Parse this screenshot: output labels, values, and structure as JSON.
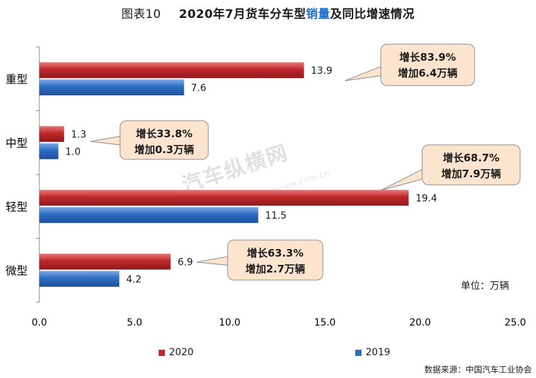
{
  "title": {
    "figure": "图表10",
    "pre": "2020年7月货车分车型",
    "highlight": "销量",
    "post": "及同比增速情况"
  },
  "chart_data": {
    "type": "bar",
    "orientation": "horizontal",
    "categories": [
      "重型",
      "中型",
      "轻型",
      "微型"
    ],
    "series": [
      {
        "name": "2020",
        "values": [
          13.9,
          1.3,
          19.4,
          6.9
        ],
        "color": "#c0282c"
      },
      {
        "name": "2019",
        "values": [
          7.6,
          1.0,
          11.5,
          4.2
        ],
        "color": "#2e6dc4"
      }
    ],
    "value_labels": [
      [
        "13.9",
        "1.3",
        "19.4",
        "6.9"
      ],
      [
        "7.6",
        "1.0",
        "11.5",
        "4.2"
      ]
    ],
    "xlim": [
      0,
      25
    ],
    "xticks": [
      "0.0",
      "5.0",
      "10.0",
      "15.0",
      "20.0",
      "25.0"
    ],
    "legend_position": "bottom",
    "grid": false,
    "annotations": [
      {
        "category": "重型",
        "line1": "增长83.9%",
        "line2": "增加6.4万辆"
      },
      {
        "category": "中型",
        "line1": "增长33.8%",
        "line2": "增加0.3万辆"
      },
      {
        "category": "轻型",
        "line1": "增长68.7%",
        "line2": "增加7.9万辆"
      },
      {
        "category": "微型",
        "line1": "增长63.3%",
        "line2": "增加2.7万辆"
      }
    ]
  },
  "unit": "单位：万辆",
  "source": "数据来源：中国汽车工业协会",
  "watermark": {
    "main": "汽车纵横网",
    "sub": "autoreview.com.cn"
  }
}
